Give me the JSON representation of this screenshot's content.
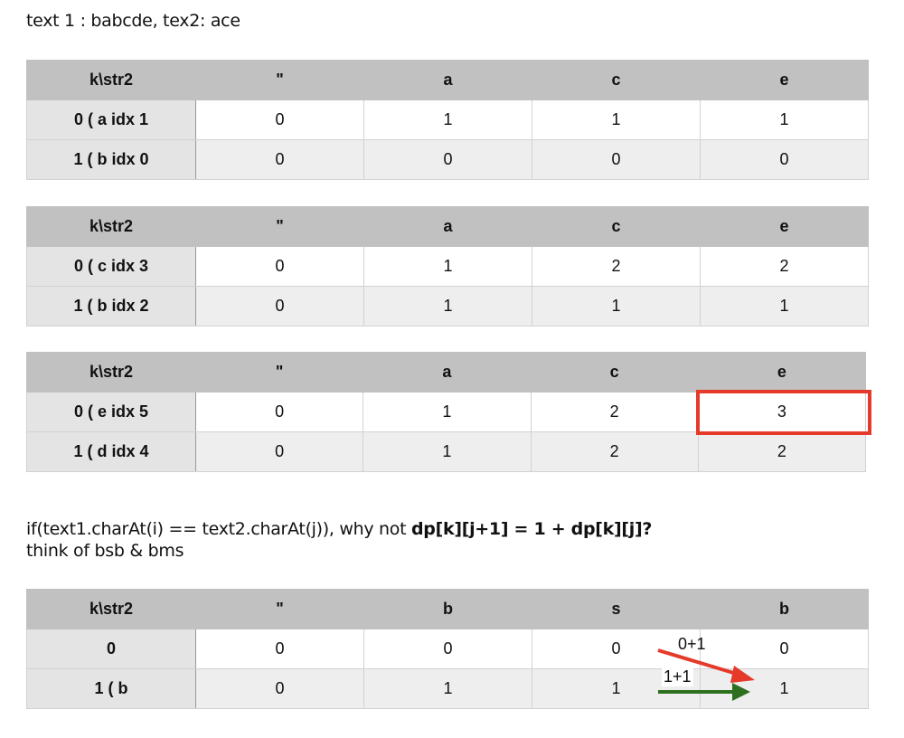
{
  "intro": "text 1 : babcde, tex2: ace",
  "tables": [
    {
      "header": [
        "k\\str2",
        "\"",
        "a",
        "c",
        "e"
      ],
      "rows": [
        [
          "0 ( a idx 1",
          "0",
          "1",
          "1",
          "1"
        ],
        [
          "1 ( b idx 0",
          "0",
          "0",
          "0",
          "0"
        ]
      ]
    },
    {
      "header": [
        "k\\str2",
        "\"",
        "a",
        "c",
        "e"
      ],
      "rows": [
        [
          "0 ( c idx 3",
          "0",
          "1",
          "2",
          "2"
        ],
        [
          "1 ( b idx 2",
          "0",
          "1",
          "1",
          "1"
        ]
      ]
    },
    {
      "header": [
        "k\\str2",
        "\"",
        "a",
        "c",
        "e"
      ],
      "rows": [
        [
          "0 ( e idx 5",
          "0",
          "1",
          "2",
          "3"
        ],
        [
          "1 ( d idx 4",
          "0",
          "1",
          "2",
          "2"
        ]
      ]
    },
    {
      "header": [
        "k\\str2",
        "\"",
        "b",
        "s",
        "b"
      ],
      "rows": [
        [
          "0",
          "0",
          "0",
          "0",
          "0"
        ],
        [
          "1 ( b",
          "0",
          "1",
          "1",
          "1"
        ]
      ]
    }
  ],
  "question": {
    "prefix": "if(text1.charAt(i) == text2.charAt(j)), why not ",
    "bold": "dp[k][j+1] = 1 + dp[k][j]?",
    "line2": "think of bsb & bms"
  },
  "annotations": {
    "red_label": "0+1",
    "green_label": "1+1",
    "red_color": "#e53a2a",
    "green_color": "#2e7020",
    "highlight_color": "#e53a2a"
  }
}
